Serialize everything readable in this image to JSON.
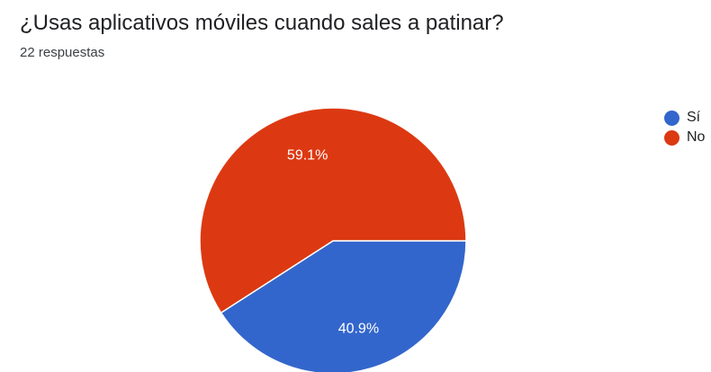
{
  "chart_data": {
    "type": "pie",
    "title": "¿Usas aplicativos móviles cuando sales a patinar?",
    "subtitle": "22 respuestas",
    "categories": [
      "Sí",
      "No"
    ],
    "values": [
      40.9,
      59.1
    ],
    "labels": [
      "40.9%",
      "59.1%"
    ],
    "colors": [
      "#3366cc",
      "#dc3912"
    ],
    "legend_position": "right"
  }
}
